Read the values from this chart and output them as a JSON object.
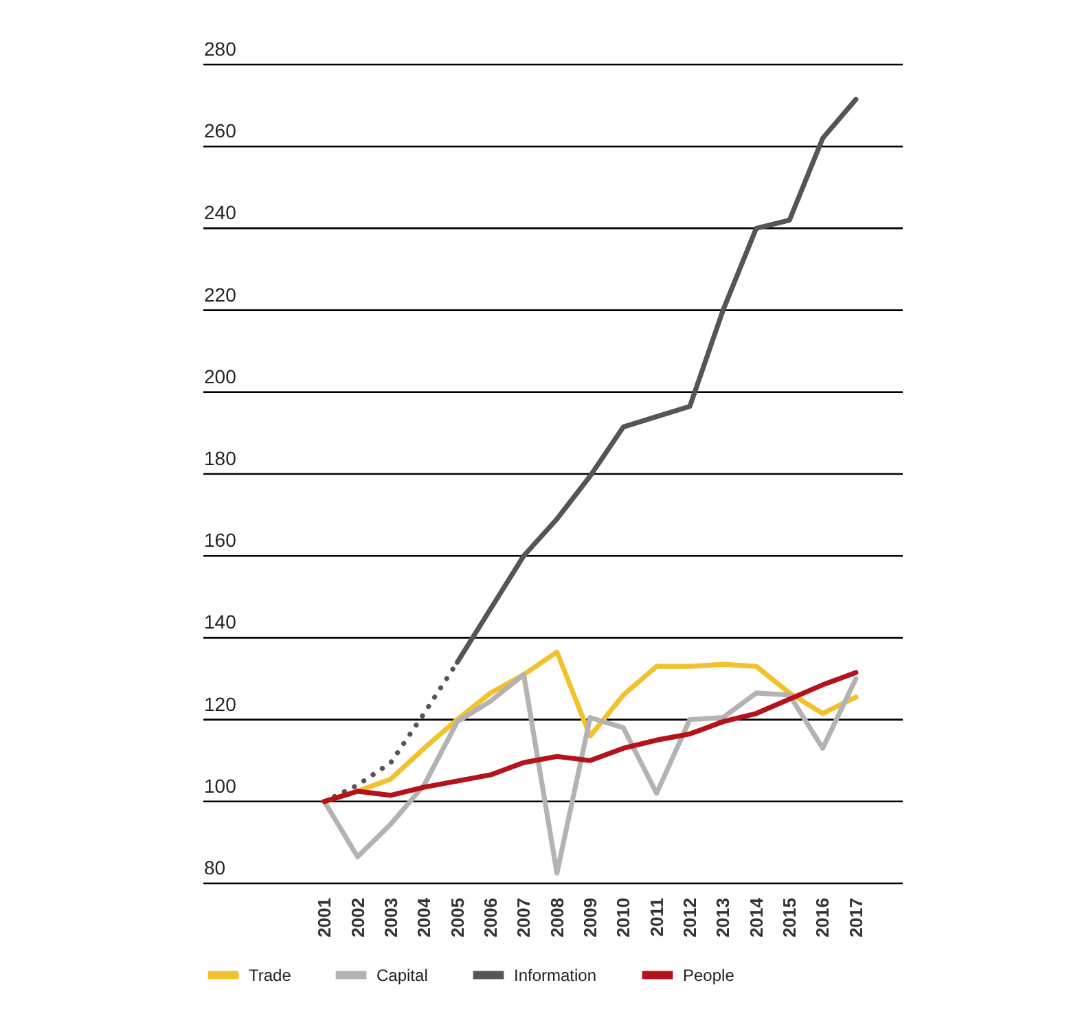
{
  "chart_data": {
    "type": "line",
    "categories": [
      "2001",
      "2002",
      "2003",
      "2004",
      "2005",
      "2006",
      "2007",
      "2008",
      "2009",
      "2010",
      "2011",
      "2012",
      "2013",
      "2014",
      "2015",
      "2016",
      "2017"
    ],
    "series": [
      {
        "name": "Trade",
        "color": "#f2c12e",
        "values": [
          100,
          102.5,
          105.5,
          113,
          120,
          126.5,
          131,
          136.5,
          116,
          126,
          133,
          133,
          133.5,
          133,
          126.5,
          121.5,
          125.5
        ]
      },
      {
        "name": "Capital",
        "color": "#b3b3b3",
        "values": [
          100,
          86.5,
          94.5,
          104,
          119.5,
          124.5,
          131,
          82.5,
          120.5,
          118,
          102,
          120,
          120.5,
          126.5,
          126,
          113,
          130
        ]
      },
      {
        "name": "Information",
        "color": "#555555",
        "values": [
          null,
          null,
          null,
          null,
          134,
          147,
          160,
          169,
          179.5,
          191.5,
          194,
          196.5,
          220,
          240,
          242,
          262,
          271.5
        ]
      },
      {
        "color": "#555555",
        "line_style": "dotted",
        "values": [
          100,
          104,
          109.5,
          121.5,
          134,
          null,
          null,
          null,
          null,
          null,
          null,
          null,
          null,
          null,
          null,
          null,
          null
        ]
      },
      {
        "name": "People",
        "color": "#b5121b",
        "values": [
          100,
          102.5,
          101.5,
          103.5,
          105,
          106.5,
          109.5,
          111,
          110,
          113,
          115,
          116.5,
          119.5,
          121.5,
          125,
          128.5,
          131.5
        ]
      }
    ],
    "ylim": [
      80,
      280
    ],
    "yticks": [
      80,
      100,
      120,
      140,
      160,
      180,
      200,
      220,
      240,
      260,
      280
    ],
    "grid": "y",
    "legend": "bottom left",
    "line_style": "solid"
  }
}
